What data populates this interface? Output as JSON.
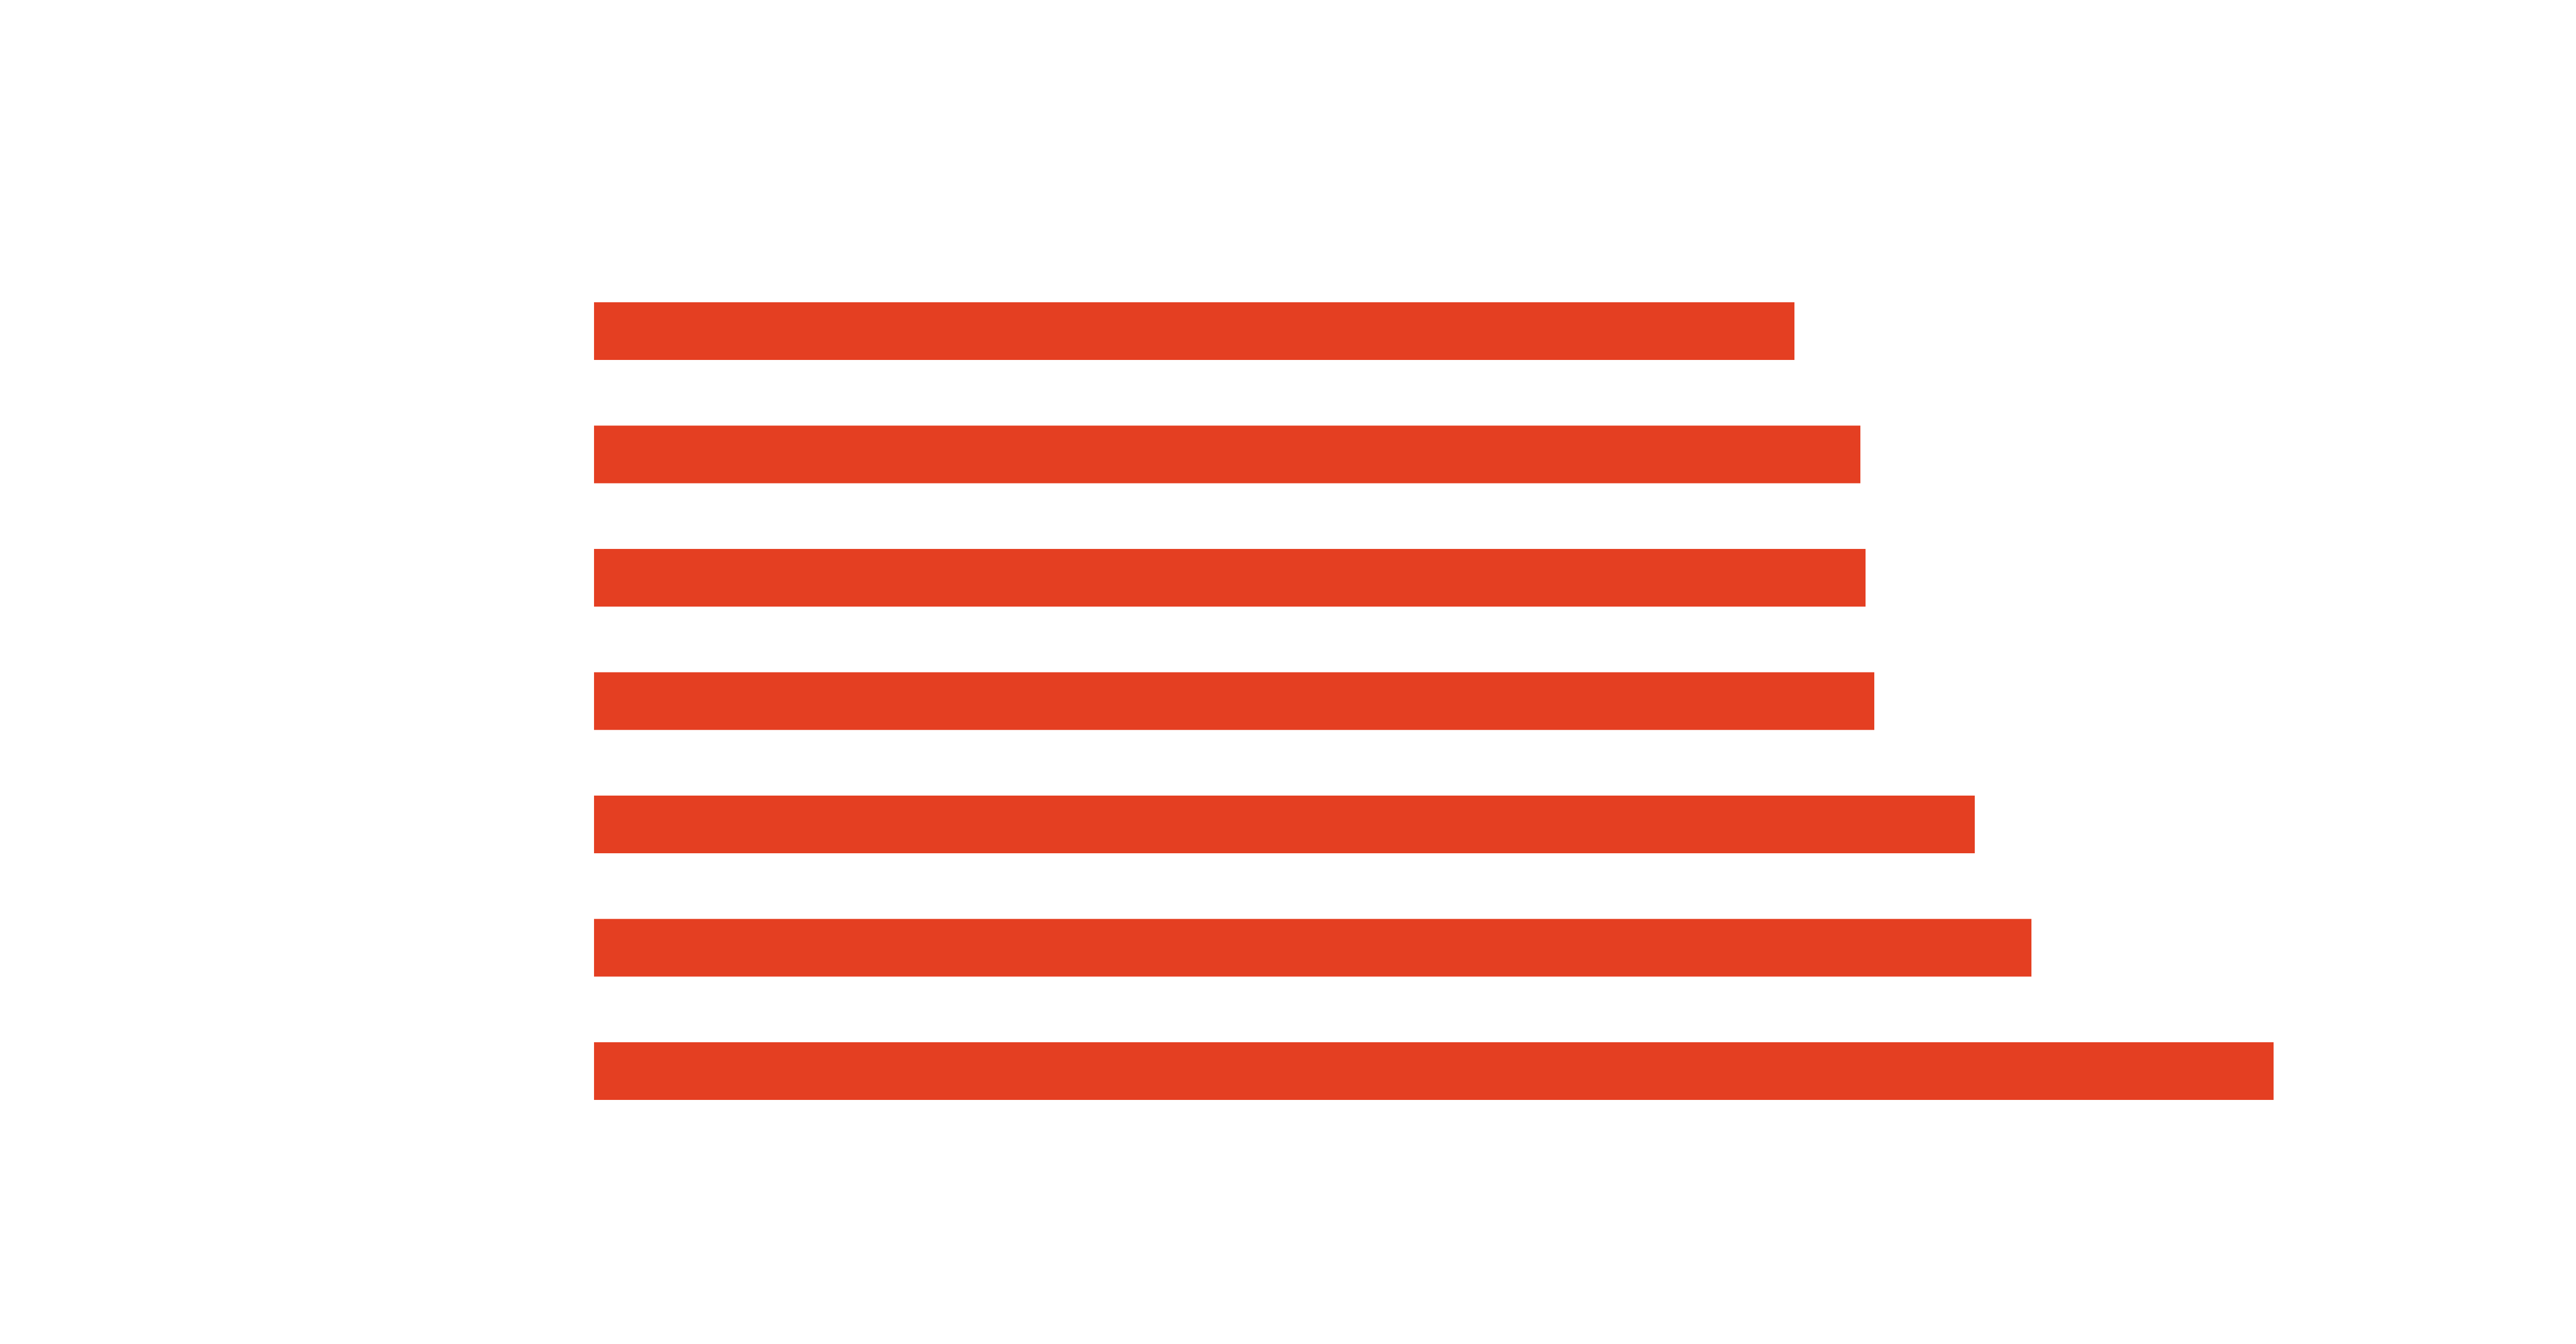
{
  "chart_data": {
    "type": "bar",
    "orientation": "horizontal",
    "values": [
      2.33,
      2.458,
      2.468,
      2.485,
      2.68,
      2.79,
      3.26
    ],
    "xlim": [
      0,
      4.0
    ],
    "bar_color": "#E43F22",
    "background_color": "#FFFFFF",
    "grid": false,
    "legend": "none"
  }
}
